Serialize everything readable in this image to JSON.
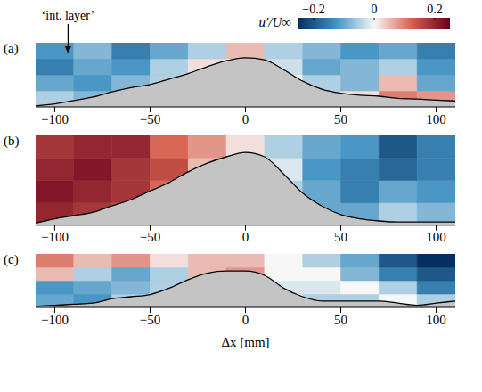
{
  "chart_data": [
    {
      "type": "heatmap",
      "title": "(a)",
      "xlim": [
        -110,
        110
      ],
      "xticks": [
        {
          "value": -100,
          "label": "−100"
        },
        {
          "value": -50,
          "label": "−50"
        },
        0,
        50,
        100
      ],
      "ylim": [
        0,
        30
      ],
      "tick_labels": "x",
      "x_edges": [
        -110,
        -90,
        -70,
        -50,
        -30,
        -10,
        10,
        30,
        50,
        70,
        90,
        110
      ],
      "y_edges": [
        0,
        7.5,
        15,
        22.5,
        30
      ],
      "cells": [
        [
          -0.05,
          -0.08,
          -0.05,
          0,
          0,
          0,
          0,
          -0.05,
          0.02,
          0.1,
          0.08
        ],
        [
          -0.1,
          -0.12,
          -0.08,
          -0.05,
          0,
          0,
          0,
          -0.05,
          -0.08,
          0.05,
          -0.1
        ],
        [
          -0.15,
          -0.1,
          -0.12,
          -0.05,
          0.02,
          0,
          -0.03,
          -0.1,
          -0.08,
          -0.05,
          -0.12
        ],
        [
          -0.12,
          -0.08,
          -0.15,
          -0.1,
          -0.05,
          0.05,
          -0.05,
          -0.08,
          -0.12,
          -0.1,
          -0.15
        ]
      ],
      "surface": {
        "x": [
          -110,
          -100,
          -90,
          -80,
          -70,
          -60,
          -50,
          -40,
          -30,
          -20,
          -10,
          0,
          10,
          20,
          30,
          40,
          50,
          60,
          70,
          80,
          90,
          100,
          110
        ],
        "y": [
          0.5,
          1.4,
          3,
          4.6,
          7,
          9,
          10.5,
          13,
          15.6,
          18.8,
          21.6,
          23,
          22,
          17.4,
          12,
          8.3,
          6.4,
          5.5,
          5,
          4,
          3.7,
          3.2,
          2.8
        ]
      },
      "colorbar": {
        "label": "u′/U∞",
        "range": [
          -0.25,
          0.25
        ],
        "ticks": [
          {
            "value": -0.2,
            "label": "−0.2"
          },
          0,
          0.2
        ]
      },
      "annotations": [
        {
          "text": "‘int. layer’",
          "x": -93
        }
      ]
    },
    {
      "type": "heatmap",
      "title": "(b)",
      "xlim": [
        -110,
        110
      ],
      "xticks": [
        {
          "value": -100,
          "label": "−100"
        },
        {
          "value": -50,
          "label": "−50"
        },
        0,
        50,
        100
      ],
      "ylim": [
        0,
        42
      ],
      "tick_labels": "x",
      "x_edges": [
        -110,
        -90,
        -70,
        -50,
        -30,
        -10,
        10,
        30,
        50,
        70,
        90,
        110
      ],
      "y_edges": [
        0,
        10.5,
        21,
        31.5,
        42
      ],
      "cells": [
        [
          0.2,
          0.18,
          0.15,
          0.1,
          0.05,
          0,
          -0.05,
          -0.1,
          -0.1,
          -0.05,
          -0.08
        ],
        [
          0.22,
          0.2,
          0.18,
          0.12,
          0.05,
          0,
          -0.05,
          -0.1,
          -0.15,
          -0.1,
          -0.12
        ],
        [
          0.2,
          0.22,
          0.18,
          0.15,
          0.05,
          0.02,
          -0.02,
          -0.12,
          -0.15,
          -0.18,
          -0.15
        ],
        [
          0.18,
          0.2,
          0.2,
          0.12,
          0.08,
          0.02,
          -0.05,
          -0.1,
          -0.12,
          -0.2,
          -0.15
        ]
      ],
      "surface": {
        "x": [
          -110,
          -100,
          -90,
          -80,
          -70,
          -60,
          -50,
          -40,
          -30,
          -20,
          -10,
          0,
          10,
          20,
          30,
          40,
          50,
          60,
          70,
          80,
          90,
          100,
          110
        ],
        "y": [
          1,
          3,
          4.5,
          6,
          9,
          12,
          16,
          20,
          25,
          29,
          32,
          34,
          32,
          24,
          15,
          9,
          5,
          3,
          2,
          1.5,
          1.5,
          1.5,
          1.5
        ]
      }
    },
    {
      "type": "heatmap",
      "title": "(c)",
      "x_label": "Δx [mm]",
      "xlim": [
        -110,
        110
      ],
      "xticks": [
        {
          "value": -100,
          "label": "−100"
        },
        {
          "value": -50,
          "label": "−50"
        },
        0,
        50,
        100
      ],
      "ylim": [
        0,
        25
      ],
      "tick_labels": "x",
      "x_edges": [
        -110,
        -90,
        -70,
        -50,
        -30,
        -10,
        10,
        30,
        50,
        70,
        90,
        110
      ],
      "y_edges": [
        0,
        6.25,
        12.5,
        18.75,
        25
      ],
      "cells": [
        [
          -0.1,
          -0.12,
          -0.05,
          -0.08,
          0,
          0.05,
          0,
          -0.05,
          -0.05,
          0,
          -0.05
        ],
        [
          -0.12,
          -0.1,
          -0.08,
          -0.05,
          -0.05,
          0.05,
          -0.02,
          -0.02,
          0,
          -0.05,
          -0.15
        ],
        [
          0.05,
          -0.05,
          -0.1,
          -0.05,
          0.05,
          0.08,
          0,
          0,
          -0.08,
          -0.15,
          -0.2
        ],
        [
          0.1,
          0.05,
          0.08,
          0.02,
          0.05,
          0.05,
          0,
          -0.05,
          -0.1,
          -0.2,
          -0.25
        ]
      ],
      "surface": {
        "x": [
          -110,
          -100,
          -90,
          -80,
          -70,
          -60,
          -50,
          -40,
          -30,
          -20,
          -10,
          0,
          10,
          20,
          30,
          40,
          50,
          60,
          70,
          80,
          90,
          100,
          110
        ],
        "y": [
          0.5,
          1,
          1.5,
          2,
          4,
          5,
          6,
          9,
          13,
          16,
          17,
          17,
          15,
          9,
          5,
          3,
          3,
          3,
          3,
          2,
          1,
          2,
          3
        ]
      }
    }
  ]
}
